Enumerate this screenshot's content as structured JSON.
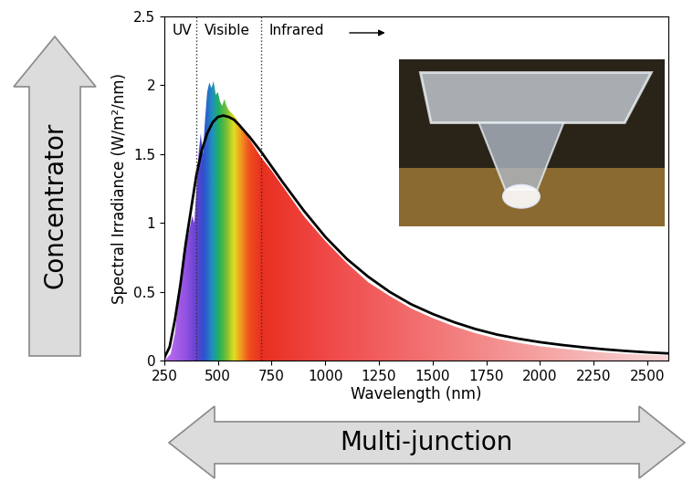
{
  "chart_data": {
    "type": "area",
    "xlabel": "Wavelength (nm)",
    "ylabel": "Spectral Irradiance (W/m²/nm)",
    "xlim": [
      250,
      2600
    ],
    "ylim": [
      0,
      2.5
    ],
    "xticks": [
      250,
      500,
      750,
      1000,
      1250,
      1500,
      1750,
      2000,
      2250,
      2500
    ],
    "yticks": [
      0,
      0.5,
      1,
      1.5,
      2,
      2.5
    ],
    "series": [
      {
        "type": "area",
        "color": "rainbow",
        "x": [
          250,
          280,
          300,
          320,
          340,
          360,
          380,
          390,
          400,
          410,
          420,
          430,
          440,
          450,
          460,
          470,
          480,
          490,
          500,
          510,
          520,
          530,
          540,
          550,
          575,
          600,
          650,
          700,
          750,
          800,
          900,
          1000,
          1100,
          1200,
          1300,
          1400,
          1500,
          1600,
          1700,
          1800,
          1900,
          2000,
          2100,
          2200,
          2300,
          2400,
          2500,
          2600
        ],
        "values": [
          0.0,
          0.05,
          0.2,
          0.5,
          0.8,
          0.9,
          1.05,
          1.0,
          1.25,
          1.5,
          1.65,
          1.5,
          1.75,
          1.95,
          2.02,
          1.98,
          2.03,
          1.93,
          1.95,
          1.88,
          1.85,
          1.9,
          1.85,
          1.82,
          1.78,
          1.72,
          1.6,
          1.48,
          1.38,
          1.27,
          1.05,
          0.87,
          0.71,
          0.57,
          0.47,
          0.38,
          0.31,
          0.25,
          0.2,
          0.16,
          0.13,
          0.105,
          0.088,
          0.073,
          0.06,
          0.05,
          0.043,
          0.037
        ]
      },
      {
        "type": "line",
        "color": "#000000",
        "x": [
          250,
          275,
          300,
          325,
          350,
          375,
          400,
          425,
          450,
          475,
          500,
          525,
          550,
          575,
          600,
          650,
          700,
          750,
          800,
          900,
          1000,
          1100,
          1200,
          1300,
          1400,
          1500,
          1600,
          1700,
          1800,
          1900,
          2000,
          2100,
          2200,
          2300,
          2400,
          2500,
          2600
        ],
        "values": [
          0.02,
          0.1,
          0.3,
          0.55,
          0.85,
          1.1,
          1.35,
          1.53,
          1.65,
          1.73,
          1.77,
          1.78,
          1.77,
          1.75,
          1.71,
          1.62,
          1.52,
          1.41,
          1.3,
          1.09,
          0.9,
          0.74,
          0.61,
          0.5,
          0.41,
          0.34,
          0.28,
          0.23,
          0.19,
          0.16,
          0.135,
          0.115,
          0.098,
          0.083,
          0.071,
          0.061,
          0.053
        ]
      }
    ],
    "regions": [
      {
        "label": "UV",
        "from": 250,
        "to": 400
      },
      {
        "label": "Visible",
        "from": 400,
        "to": 700
      },
      {
        "label": "Infrared",
        "from": 700,
        "to": 2600
      }
    ],
    "annotations": [
      "Concentrator",
      "Multi-junction"
    ]
  }
}
